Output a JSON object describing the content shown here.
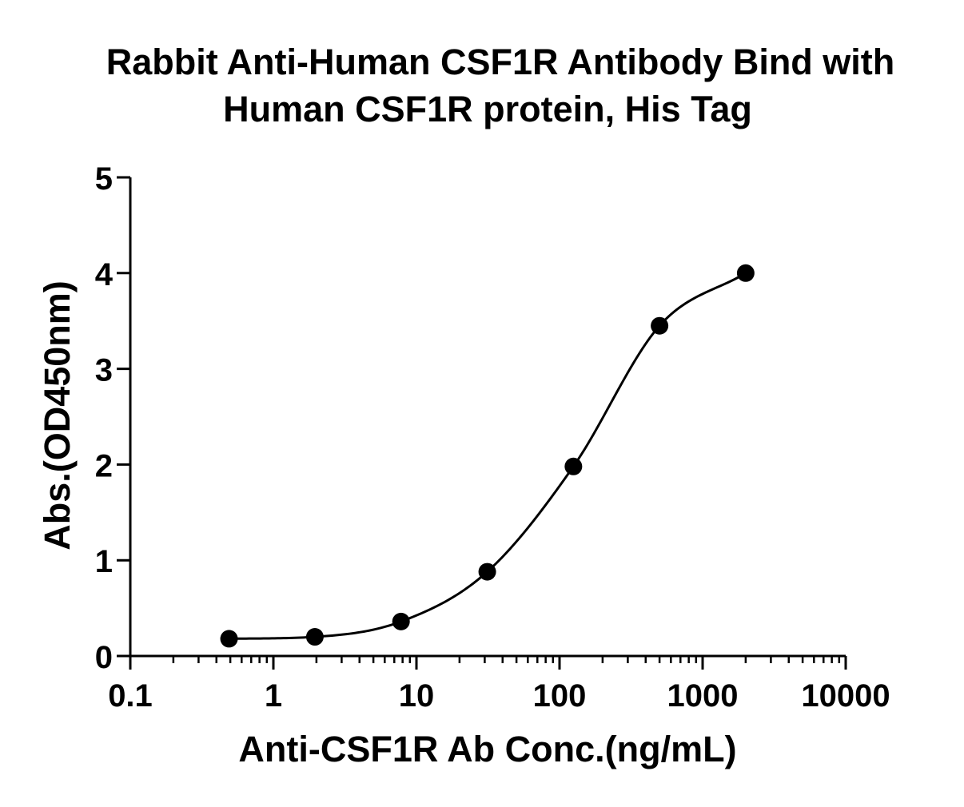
{
  "chart_data": {
    "type": "scatter",
    "title_lines": [
      "Rabbit Anti-Human CSF1R Antibody Bind with",
      "Human CSF1R protein, His Tag"
    ],
    "xlabel": "Anti-CSF1R Ab Conc.(ng/mL)",
    "ylabel": "Abs.(OD450nm)",
    "x_scale": "log",
    "xlim": [
      0.1,
      10000
    ],
    "ylim": [
      0,
      5
    ],
    "x_ticks": [
      "0.1",
      "1",
      "10",
      "100",
      "1000",
      "10000"
    ],
    "y_ticks": [
      "0",
      "1",
      "2",
      "3",
      "4",
      "5"
    ],
    "grid": false,
    "legend": "none",
    "fit_curve": "four-parameter logistic",
    "series": [
      {
        "x": [
          0.49,
          1.95,
          7.8,
          31.25,
          125,
          500,
          2000
        ],
        "y": [
          0.18,
          0.2,
          0.36,
          0.88,
          1.98,
          3.45,
          4.0
        ]
      }
    ],
    "colors": {
      "marker": "#000000",
      "curve": "#000000",
      "axis": "#000000"
    }
  }
}
